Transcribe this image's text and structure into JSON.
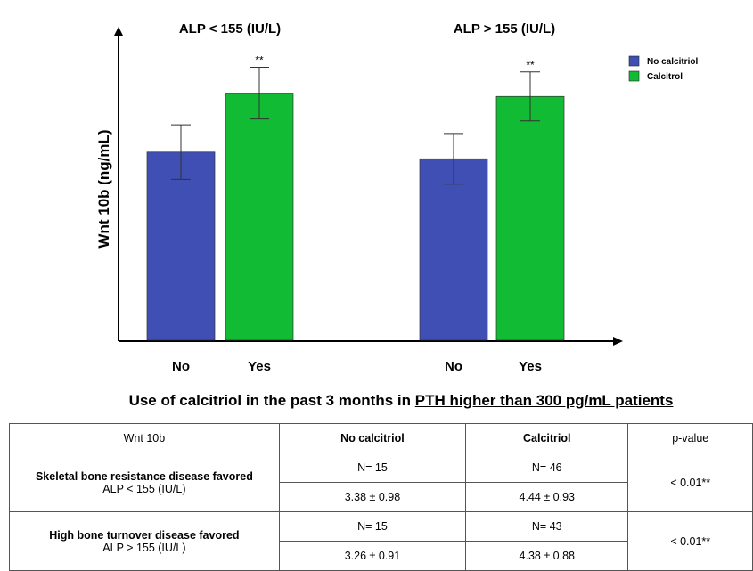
{
  "chart_data": {
    "type": "bar",
    "groups": [
      "ALP < 155 (IU/L)",
      "ALP > 155 (IU/L)"
    ],
    "categories": [
      "No",
      "Yes",
      "No",
      "Yes"
    ],
    "ylabel": "Wnt 10b (ng/mL)",
    "legend": [
      {
        "name": "No calcitriol",
        "color": "#3f4fb3"
      },
      {
        "name": "Calcitrol",
        "color": "#11bb33"
      }
    ],
    "legend_position": "top-right",
    "bars": [
      {
        "group": 0,
        "category": "No",
        "series": 0,
        "value": 3.38,
        "error": 0.98,
        "sig": ""
      },
      {
        "group": 0,
        "category": "Yes",
        "series": 1,
        "value": 4.44,
        "error": 0.93,
        "sig": "**"
      },
      {
        "group": 1,
        "category": "No",
        "series": 0,
        "value": 3.26,
        "error": 0.91,
        "sig": ""
      },
      {
        "group": 1,
        "category": "Yes",
        "series": 1,
        "value": 4.38,
        "error": 0.88,
        "sig": "**"
      }
    ],
    "ylim": [
      0,
      5
    ],
    "grid": false
  },
  "table": {
    "title_plain": "Use of calcitriol in the past 3 months in ",
    "title_underlined": "PTH higher than 300 pg/mL patients",
    "headers": [
      "Wnt 10b",
      "No calcitriol",
      "Calcitriol",
      "p-value"
    ],
    "rows": [
      {
        "label": "Skeletal bone resistance disease favored",
        "sublabel": "ALP < 155 (IU/L)",
        "n_no": "N= 15",
        "n_cal": "N= 46",
        "val_no": "3.38 ± 0.98",
        "val_cal": "4.44 ± 0.93",
        "p": "< 0.01**"
      },
      {
        "label": "High bone turnover disease favored",
        "sublabel": "ALP > 155 (IU/L)",
        "n_no": "N= 15",
        "n_cal": "N= 43",
        "val_no": "3.26 ± 0.91",
        "val_cal": "4.38 ± 0.88",
        "p": "< 0.01**"
      }
    ]
  }
}
